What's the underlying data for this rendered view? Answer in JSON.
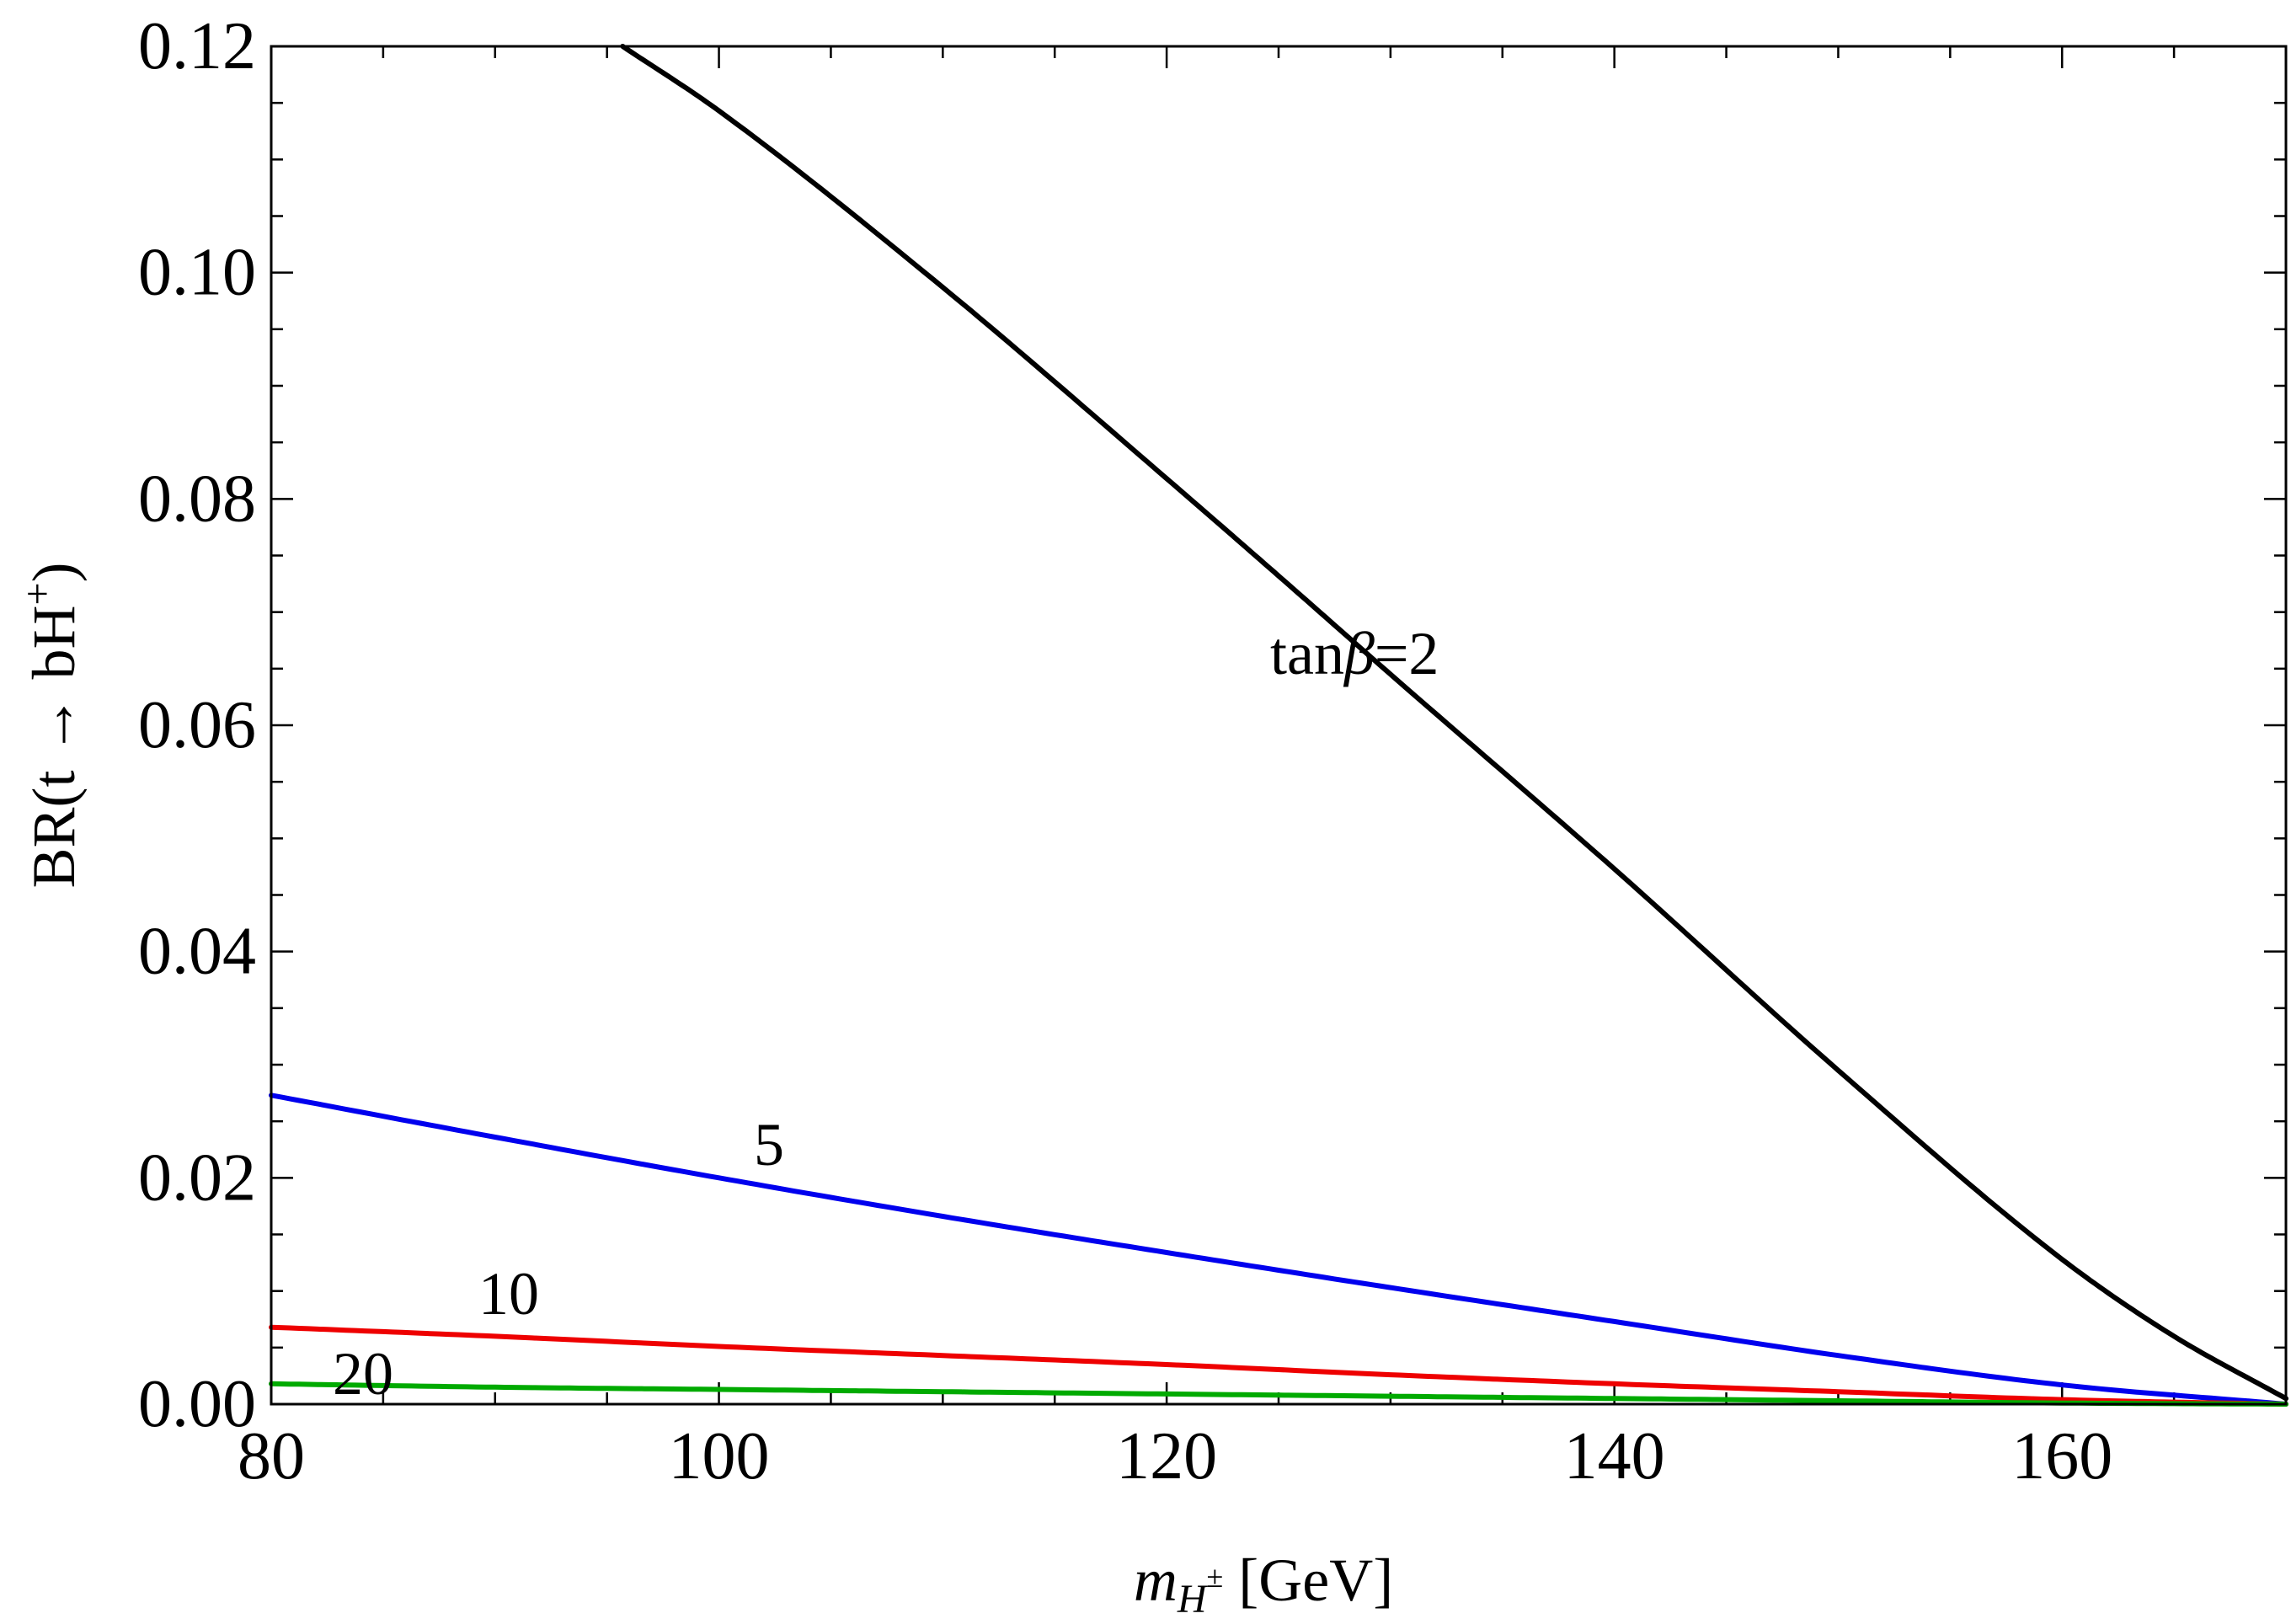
{
  "chart_data": {
    "type": "line",
    "title": "",
    "xlabel_base": "m",
    "xlabel_sub_main": "H",
    "xlabel_sub_sup": "±",
    "xlabel_unit": "[GeV]",
    "ylabel_main": "BR(t → bH",
    "ylabel_sup": "+",
    "ylabel_close": ")",
    "xlim": [
      80,
      170
    ],
    "ylim": [
      0,
      0.12
    ],
    "x_ticks": [
      80,
      100,
      120,
      140,
      160
    ],
    "x_tick_labels": [
      "80",
      "100",
      "120",
      "140",
      "160"
    ],
    "y_ticks": [
      0,
      0.02,
      0.04,
      0.06,
      0.08,
      0.1,
      0.12
    ],
    "y_tick_labels": [
      "0.00",
      "0.02",
      "0.04",
      "0.06",
      "0.08",
      "0.10",
      "0.12"
    ],
    "grid": false,
    "series": [
      {
        "label_prefix": "tan",
        "label_symbol": "β",
        "label_suffix": "=2",
        "color": "#000000",
        "x": [
          95.7,
          100,
          110,
          120,
          125,
          130,
          140,
          150,
          160,
          165,
          170
        ],
        "values": [
          0.12,
          0.1143,
          0.0987,
          0.0818,
          0.0732,
          0.0645,
          0.0473,
          0.0295,
          0.0128,
          0.006,
          0.0005
        ]
      },
      {
        "label": "5",
        "color": "#0000ee",
        "x": [
          80,
          90,
          100,
          110,
          120,
          130,
          140,
          150,
          160,
          170
        ],
        "values": [
          0.0273,
          0.0236,
          0.02,
          0.0166,
          0.0134,
          0.0103,
          0.0073,
          0.0043,
          0.0017,
          0.0
        ]
      },
      {
        "label": "10",
        "color": "#ee0000",
        "x": [
          80,
          90,
          100,
          110,
          120,
          130,
          140,
          150,
          160,
          170
        ],
        "values": [
          0.0068,
          0.006,
          0.0051,
          0.0043,
          0.0035,
          0.0026,
          0.0018,
          0.0011,
          0.0004,
          0.0
        ]
      },
      {
        "label": "20",
        "color": "#00aa00",
        "x": [
          80,
          90,
          100,
          110,
          120,
          130,
          140,
          150,
          160,
          170
        ],
        "values": [
          0.0018,
          0.0015,
          0.0013,
          0.0011,
          0.0009,
          0.0007,
          0.0005,
          0.0003,
          0.0001,
          0.0
        ]
      }
    ]
  }
}
